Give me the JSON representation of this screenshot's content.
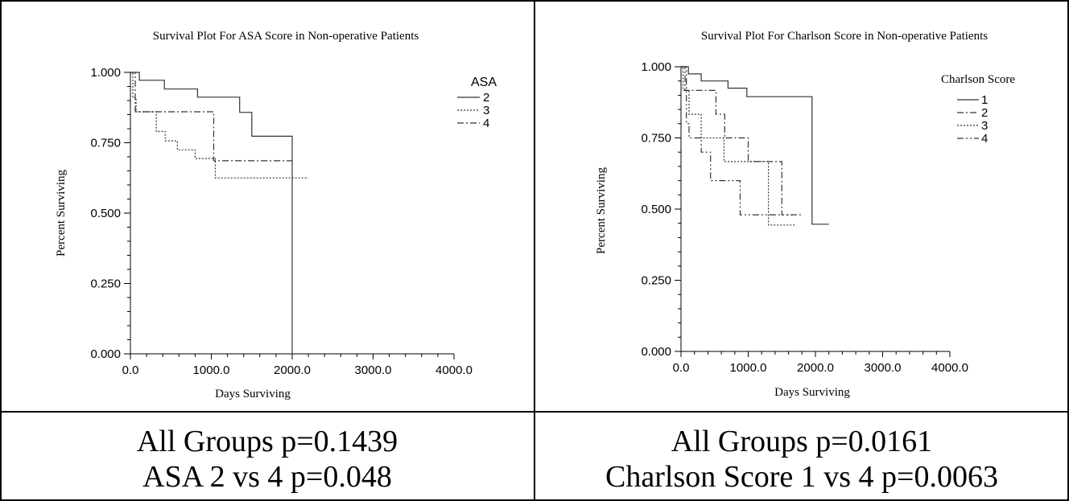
{
  "chart_data": [
    {
      "type": "line",
      "title": "Survival Plot For ASA Score in Non-operative Patients",
      "xlabel": "Days Surviving",
      "ylabel": "Percent Surviving",
      "xlim": [
        0,
        4000
      ],
      "ylim": [
        0,
        1
      ],
      "x_ticks": [
        "0.0",
        "1000.0",
        "2000.0",
        "3000.0",
        "4000.0"
      ],
      "y_ticks": [
        "0.000",
        "0.250",
        "0.500",
        "0.750",
        "1.000"
      ],
      "legend_title": "ASA",
      "legend_position": "top-right",
      "series": [
        {
          "name": "2",
          "dash": "solid",
          "points": [
            [
              0,
              1.0
            ],
            [
              110,
              1.0
            ],
            [
              110,
              0.972
            ],
            [
              420,
              0.972
            ],
            [
              420,
              0.941
            ],
            [
              830,
              0.941
            ],
            [
              830,
              0.912
            ],
            [
              1350,
              0.912
            ],
            [
              1350,
              0.858
            ],
            [
              1500,
              0.858
            ],
            [
              1500,
              0.773
            ],
            [
              2000,
              0.773
            ],
            [
              2000,
              0.0
            ]
          ]
        },
        {
          "name": "3",
          "dash": "dotted",
          "points": [
            [
              0,
              1.0
            ],
            [
              30,
              1.0
            ],
            [
              30,
              0.91
            ],
            [
              70,
              0.91
            ],
            [
              70,
              0.86
            ],
            [
              320,
              0.86
            ],
            [
              320,
              0.79
            ],
            [
              430,
              0.79
            ],
            [
              430,
              0.757
            ],
            [
              580,
              0.757
            ],
            [
              580,
              0.725
            ],
            [
              800,
              0.725
            ],
            [
              800,
              0.694
            ],
            [
              1050,
              0.694
            ],
            [
              1050,
              0.625
            ],
            [
              2200,
              0.625
            ]
          ]
        },
        {
          "name": "4",
          "dash": "dashdot",
          "points": [
            [
              0,
              1.0
            ],
            [
              60,
              1.0
            ],
            [
              60,
              0.86
            ],
            [
              1030,
              0.86
            ],
            [
              1030,
              0.686
            ],
            [
              2000,
              0.686
            ]
          ]
        }
      ],
      "annotation": {
        "line1": "All Groups p=0.1439",
        "line2": "ASA 2 vs 4 p=0.048"
      }
    },
    {
      "type": "line",
      "title": "Survival Plot For Charlson Score in Non-operative Patients",
      "xlabel": "Days Surviving",
      "ylabel": "Percent Surviving",
      "xlim": [
        0,
        4000
      ],
      "ylim": [
        0,
        1
      ],
      "x_ticks": [
        "0.0",
        "1000.0",
        "2000.0",
        "3000.0",
        "4000.0"
      ],
      "y_ticks": [
        "0.000",
        "0.250",
        "0.500",
        "0.750",
        "1.000"
      ],
      "legend_title": "Charlson Score",
      "legend_position": "top-right",
      "series": [
        {
          "name": "1",
          "dash": "solid",
          "points": [
            [
              0,
              1.0
            ],
            [
              110,
              1.0
            ],
            [
              110,
              0.975
            ],
            [
              300,
              0.975
            ],
            [
              300,
              0.95
            ],
            [
              700,
              0.95
            ],
            [
              700,
              0.925
            ],
            [
              980,
              0.925
            ],
            [
              980,
              0.895
            ],
            [
              1950,
              0.895
            ],
            [
              1950,
              0.447
            ],
            [
              2200,
              0.447
            ]
          ]
        },
        {
          "name": "2",
          "dash": "dashdot",
          "points": [
            [
              0,
              1.0
            ],
            [
              60,
              1.0
            ],
            [
              60,
              0.917
            ],
            [
              520,
              0.917
            ],
            [
              520,
              0.833
            ],
            [
              650,
              0.833
            ],
            [
              650,
              0.75
            ],
            [
              1000,
              0.75
            ],
            [
              1000,
              0.667
            ],
            [
              1500,
              0.667
            ],
            [
              1500,
              0.48
            ],
            [
              1800,
              0.48
            ]
          ]
        },
        {
          "name": "3",
          "dash": "dotted",
          "points": [
            [
              0,
              1.0
            ],
            [
              30,
              1.0
            ],
            [
              30,
              0.917
            ],
            [
              120,
              0.917
            ],
            [
              120,
              0.833
            ],
            [
              300,
              0.833
            ],
            [
              300,
              0.75
            ],
            [
              640,
              0.75
            ],
            [
              640,
              0.667
            ],
            [
              1300,
              0.667
            ],
            [
              1300,
              0.444
            ],
            [
              1700,
              0.444
            ]
          ]
        },
        {
          "name": "4",
          "dash": "dashdotdot",
          "points": [
            [
              0,
              1.0
            ],
            [
              80,
              1.0
            ],
            [
              80,
              0.8
            ],
            [
              120,
              0.8
            ],
            [
              120,
              0.75
            ],
            [
              300,
              0.75
            ],
            [
              300,
              0.7
            ],
            [
              440,
              0.7
            ],
            [
              440,
              0.6
            ],
            [
              880,
              0.6
            ],
            [
              880,
              0.48
            ],
            [
              1600,
              0.48
            ]
          ]
        }
      ],
      "annotation": {
        "line1": "All Groups p=0.0161",
        "line2": "Charlson Score 1 vs 4 p=0.0063"
      }
    }
  ]
}
